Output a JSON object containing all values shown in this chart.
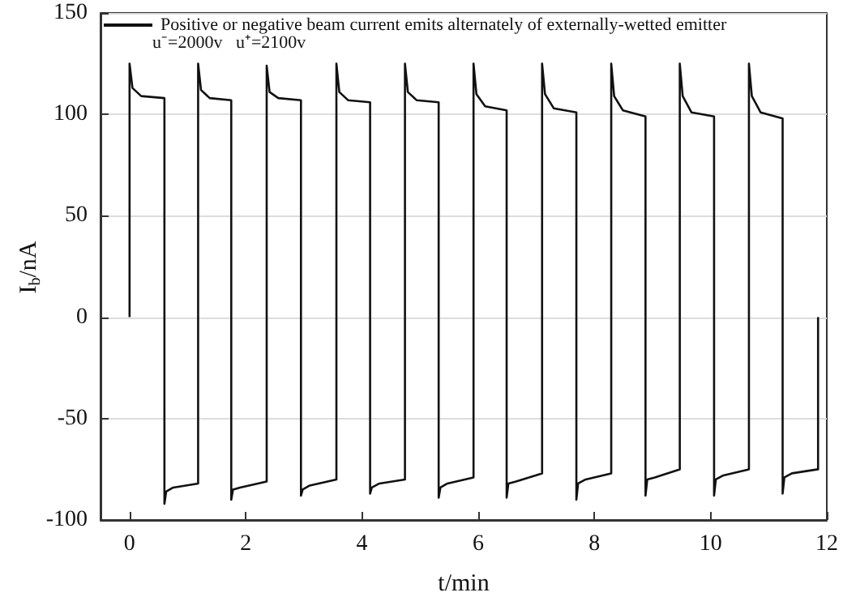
{
  "chart_data": {
    "type": "line",
    "xlabel": "t/min",
    "ylabel": "I$_{b}$/nA",
    "annotations": [
      "u⁻=2000v   u⁺=2100v"
    ],
    "xlim": [
      -0.5,
      12
    ],
    "xticks": [
      0,
      2,
      4,
      6,
      8,
      10,
      12
    ],
    "ylim": [
      -100,
      150
    ],
    "yticks": [
      -100,
      -50,
      0,
      50,
      100,
      150
    ],
    "grid": "y",
    "legend": "top left",
    "marker": "none",
    "line_style": "solid",
    "series": [
      {
        "name": "Positive or negative beam current emits alternately of externally-wetted emitter",
        "color": "#111111",
        "x": [
          0,
          0,
          0.05,
          0.2,
          0.6,
          0.6,
          0.63,
          0.75,
          1.18,
          1.18,
          1.23,
          1.38,
          1.75,
          1.75,
          1.78,
          1.9,
          2.36,
          2.36,
          2.41,
          2.56,
          2.95,
          2.95,
          2.98,
          3.1,
          3.56,
          3.56,
          3.61,
          3.76,
          4.14,
          4.14,
          4.17,
          4.3,
          4.74,
          4.74,
          4.79,
          4.94,
          5.32,
          5.32,
          5.35,
          5.47,
          5.92,
          5.92,
          5.97,
          6.12,
          6.49,
          6.49,
          6.52,
          6.65,
          7.1,
          7.1,
          7.15,
          7.3,
          7.69,
          7.69,
          7.72,
          7.85,
          8.29,
          8.29,
          8.34,
          8.49,
          8.88,
          8.88,
          8.91,
          9.04,
          9.47,
          9.47,
          9.52,
          9.67,
          10.06,
          10.06,
          10.09,
          10.22,
          10.66,
          10.66,
          10.71,
          10.86,
          11.24,
          11.24,
          11.27,
          11.4,
          11.85,
          11.85
        ],
        "values": [
          0,
          125,
          113,
          109,
          108,
          -92,
          -86,
          -84,
          -82,
          125,
          112,
          108,
          107,
          -90,
          -85,
          -84,
          -81,
          124,
          111,
          108,
          107,
          -88,
          -85,
          -83,
          -80,
          125,
          111,
          107,
          106,
          -87,
          -84,
          -82,
          -80,
          125,
          111,
          107,
          106,
          -89,
          -84,
          -82,
          -79,
          125,
          110,
          104,
          102,
          -89,
          -82,
          -81,
          -77,
          125,
          110,
          103,
          101,
          -90,
          -82,
          -80,
          -77,
          125,
          109,
          102,
          99,
          -88,
          -80,
          -79,
          -75,
          125,
          109,
          101,
          99,
          -88,
          -80,
          -78,
          -75,
          125,
          109,
          101,
          98,
          -87,
          -79,
          -77,
          -75,
          0
        ]
      }
    ]
  }
}
